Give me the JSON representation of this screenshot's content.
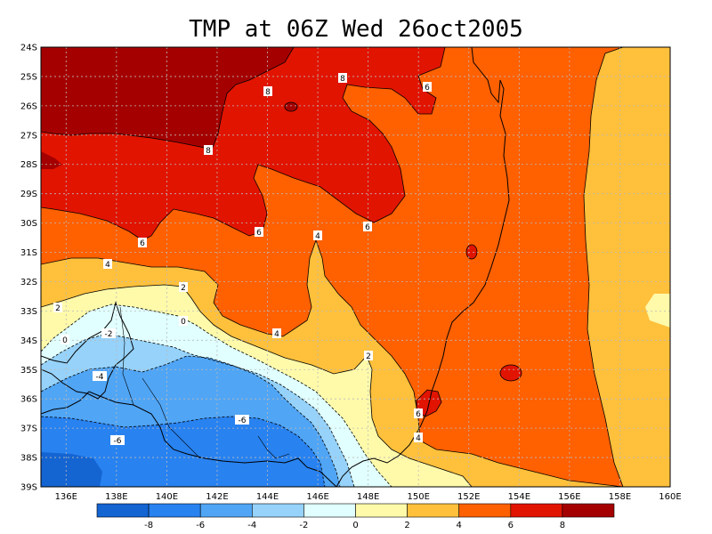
{
  "title": "TMP at 06Z Wed 26oct2005",
  "latitude_labels": [
    "24S",
    "25S",
    "26S",
    "27S",
    "28S",
    "29S",
    "30S",
    "31S",
    "32S",
    "33S",
    "34S",
    "35S",
    "36S",
    "37S",
    "38S",
    "39S"
  ],
  "longitude_labels": [
    "136E",
    "138E",
    "140E",
    "142E",
    "144E",
    "146E",
    "148E",
    "150E",
    "152E",
    "154E",
    "156E",
    "158E",
    "160E"
  ],
  "colorbar": {
    "labels": [
      "-8",
      "-6",
      "-4",
      "-2",
      "0",
      "2",
      "4",
      "6",
      "8"
    ],
    "colors": [
      "#1464d2",
      "#2882f0",
      "#50a5f5",
      "#96d2fa",
      "#e1ffff",
      "#fffaaa",
      "#ffc03c",
      "#ff6000",
      "#e11400",
      "#a50000"
    ]
  },
  "contour_labels": [
    {
      "text": "8"
    },
    {
      "text": "8"
    },
    {
      "text": "8"
    },
    {
      "text": "6"
    },
    {
      "text": "6"
    },
    {
      "text": "6"
    },
    {
      "text": "6"
    },
    {
      "text": "4"
    },
    {
      "text": "4"
    },
    {
      "text": "4"
    },
    {
      "text": "2"
    },
    {
      "text": "2"
    },
    {
      "text": "2"
    },
    {
      "text": "0"
    },
    {
      "text": "0"
    },
    {
      "text": "-2"
    },
    {
      "text": "-4"
    },
    {
      "text": "-6"
    },
    {
      "text": "-6"
    },
    {
      "text": "6"
    },
    {
      "text": "4"
    }
  ]
}
